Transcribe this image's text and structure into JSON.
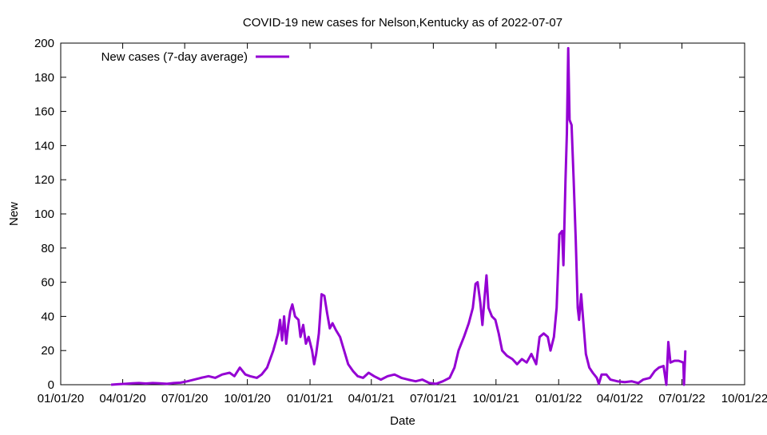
{
  "chart_data": {
    "type": "line",
    "title": "COVID-19 new cases for Nelson,Kentucky as of 2022-07-07",
    "xlabel": "Date",
    "ylabel": "New",
    "ylim": [
      0,
      200
    ],
    "yticks": [
      0,
      20,
      40,
      60,
      80,
      100,
      120,
      140,
      160,
      180,
      200
    ],
    "xlim": [
      "2020-01-01",
      "2022-10-01"
    ],
    "xticks": [
      "2020-01-01",
      "2020-04-01",
      "2020-07-01",
      "2020-10-01",
      "2021-01-01",
      "2021-04-01",
      "2021-07-01",
      "2021-10-01",
      "2022-01-01",
      "2022-04-01",
      "2022-07-01",
      "2022-10-01"
    ],
    "xtick_labels": [
      "01/01/20",
      "04/01/20",
      "07/01/20",
      "10/01/20",
      "01/01/21",
      "04/01/21",
      "07/01/21",
      "10/01/21",
      "01/01/22",
      "04/01/22",
      "07/01/22",
      "10/01/22"
    ],
    "grid": false,
    "legend_position": "top-left",
    "colors": {
      "series": "#9400d3",
      "axis": "#000000",
      "background": "#ffffff"
    },
    "series": [
      {
        "name": "New cases (7-day average)",
        "points": [
          [
            "2020-03-15",
            0
          ],
          [
            "2020-03-25",
            0.3
          ],
          [
            "2020-04-05",
            0.5
          ],
          [
            "2020-04-15",
            0.8
          ],
          [
            "2020-04-25",
            1
          ],
          [
            "2020-05-05",
            0.7
          ],
          [
            "2020-05-15",
            1
          ],
          [
            "2020-05-25",
            0.8
          ],
          [
            "2020-06-05",
            0.5
          ],
          [
            "2020-06-15",
            1
          ],
          [
            "2020-06-25",
            1.2
          ],
          [
            "2020-07-05",
            2
          ],
          [
            "2020-07-15",
            3
          ],
          [
            "2020-07-25",
            4
          ],
          [
            "2020-08-05",
            5
          ],
          [
            "2020-08-15",
            4
          ],
          [
            "2020-08-25",
            6
          ],
          [
            "2020-09-05",
            7
          ],
          [
            "2020-09-12",
            5
          ],
          [
            "2020-09-20",
            10
          ],
          [
            "2020-09-28",
            6
          ],
          [
            "2020-10-05",
            5
          ],
          [
            "2020-10-15",
            4
          ],
          [
            "2020-10-22",
            6
          ],
          [
            "2020-10-30",
            10
          ],
          [
            "2020-11-08",
            20
          ],
          [
            "2020-11-15",
            30
          ],
          [
            "2020-11-18",
            38
          ],
          [
            "2020-11-21",
            26
          ],
          [
            "2020-11-24",
            40
          ],
          [
            "2020-11-27",
            24
          ],
          [
            "2020-11-30",
            35
          ],
          [
            "2020-12-03",
            43
          ],
          [
            "2020-12-06",
            47
          ],
          [
            "2020-12-10",
            40
          ],
          [
            "2020-12-15",
            38
          ],
          [
            "2020-12-18",
            28
          ],
          [
            "2020-12-22",
            35
          ],
          [
            "2020-12-26",
            24
          ],
          [
            "2020-12-30",
            28
          ],
          [
            "2021-01-04",
            20
          ],
          [
            "2021-01-07",
            12
          ],
          [
            "2021-01-10",
            18
          ],
          [
            "2021-01-14",
            30
          ],
          [
            "2021-01-18",
            53
          ],
          [
            "2021-01-22",
            52
          ],
          [
            "2021-01-26",
            42
          ],
          [
            "2021-01-30",
            33
          ],
          [
            "2021-02-03",
            36
          ],
          [
            "2021-02-08",
            32
          ],
          [
            "2021-02-14",
            28
          ],
          [
            "2021-02-20",
            20
          ],
          [
            "2021-02-26",
            12
          ],
          [
            "2021-03-05",
            8
          ],
          [
            "2021-03-12",
            5
          ],
          [
            "2021-03-20",
            4
          ],
          [
            "2021-03-28",
            7
          ],
          [
            "2021-04-05",
            5
          ],
          [
            "2021-04-15",
            3
          ],
          [
            "2021-04-25",
            5
          ],
          [
            "2021-05-05",
            6
          ],
          [
            "2021-05-15",
            4
          ],
          [
            "2021-05-25",
            3
          ],
          [
            "2021-06-05",
            2
          ],
          [
            "2021-06-15",
            3
          ],
          [
            "2021-06-25",
            1
          ],
          [
            "2021-07-05",
            0.5
          ],
          [
            "2021-07-15",
            2
          ],
          [
            "2021-07-25",
            4
          ],
          [
            "2021-08-01",
            10
          ],
          [
            "2021-08-07",
            20
          ],
          [
            "2021-08-15",
            28
          ],
          [
            "2021-08-22",
            36
          ],
          [
            "2021-08-28",
            45
          ],
          [
            "2021-09-01",
            59
          ],
          [
            "2021-09-04",
            60
          ],
          [
            "2021-09-08",
            48
          ],
          [
            "2021-09-11",
            35
          ],
          [
            "2021-09-14",
            50
          ],
          [
            "2021-09-17",
            64
          ],
          [
            "2021-09-20",
            45
          ],
          [
            "2021-09-25",
            40
          ],
          [
            "2021-09-30",
            38
          ],
          [
            "2021-10-05",
            30
          ],
          [
            "2021-10-10",
            20
          ],
          [
            "2021-10-17",
            17
          ],
          [
            "2021-10-25",
            15
          ],
          [
            "2021-11-01",
            12
          ],
          [
            "2021-11-08",
            15
          ],
          [
            "2021-11-15",
            13
          ],
          [
            "2021-11-22",
            18
          ],
          [
            "2021-11-29",
            12
          ],
          [
            "2021-12-04",
            28
          ],
          [
            "2021-12-10",
            30
          ],
          [
            "2021-12-16",
            28
          ],
          [
            "2021-12-20",
            20
          ],
          [
            "2021-12-25",
            28
          ],
          [
            "2021-12-29",
            45
          ],
          [
            "2022-01-02",
            88
          ],
          [
            "2022-01-06",
            90
          ],
          [
            "2022-01-08",
            70
          ],
          [
            "2022-01-11",
            120
          ],
          [
            "2022-01-13",
            147
          ],
          [
            "2022-01-15",
            197
          ],
          [
            "2022-01-17",
            155
          ],
          [
            "2022-01-20",
            152
          ],
          [
            "2022-01-23",
            120
          ],
          [
            "2022-01-26",
            85
          ],
          [
            "2022-01-29",
            45
          ],
          [
            "2022-01-31",
            38
          ],
          [
            "2022-02-03",
            53
          ],
          [
            "2022-02-06",
            38
          ],
          [
            "2022-02-10",
            18
          ],
          [
            "2022-02-15",
            10
          ],
          [
            "2022-02-20",
            7
          ],
          [
            "2022-02-26",
            4
          ],
          [
            "2022-03-01",
            0.5
          ],
          [
            "2022-03-05",
            6
          ],
          [
            "2022-03-12",
            6
          ],
          [
            "2022-03-18",
            3
          ],
          [
            "2022-03-28",
            2
          ],
          [
            "2022-04-08",
            1.5
          ],
          [
            "2022-04-18",
            2
          ],
          [
            "2022-04-28",
            1
          ],
          [
            "2022-05-05",
            3
          ],
          [
            "2022-05-15",
            4
          ],
          [
            "2022-05-22",
            8
          ],
          [
            "2022-05-28",
            10
          ],
          [
            "2022-06-04",
            11
          ],
          [
            "2022-06-08",
            0
          ],
          [
            "2022-06-11",
            25
          ],
          [
            "2022-06-14",
            13
          ],
          [
            "2022-06-20",
            14
          ],
          [
            "2022-06-26",
            14
          ],
          [
            "2022-07-03",
            13
          ],
          [
            "2022-07-04",
            0
          ],
          [
            "2022-07-06",
            20
          ]
        ]
      }
    ]
  }
}
